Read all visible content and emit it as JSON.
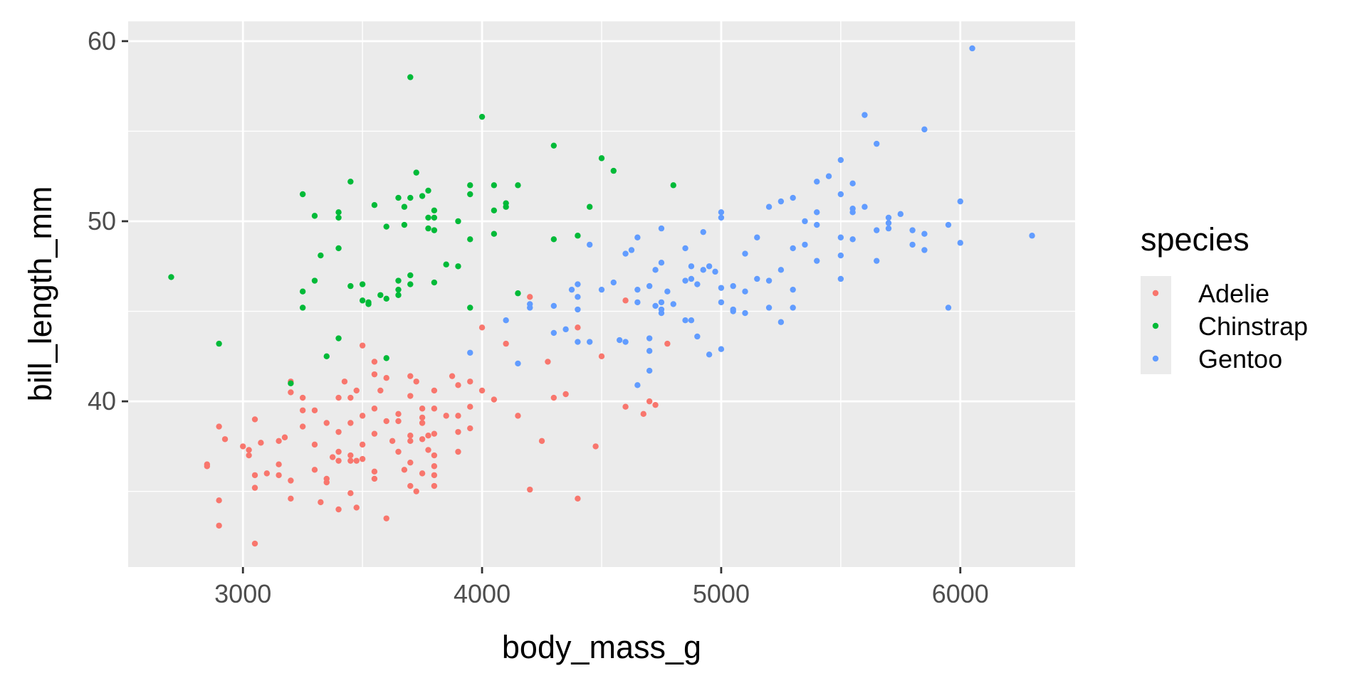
{
  "chart_data": {
    "type": "scatter",
    "xlabel": "body_mass_g",
    "ylabel": "bill_length_mm",
    "xlim": [
      2520,
      6480
    ],
    "ylim": [
      30.8,
      61.1
    ],
    "xticks": [
      3000,
      4000,
      5000,
      6000
    ],
    "yticks": [
      40,
      50,
      60
    ],
    "grid": true,
    "background": "#ebebeb",
    "legend": {
      "title": "species",
      "position": "right"
    },
    "series": [
      {
        "name": "Adelie",
        "color": "#f8766d",
        "points": [
          [
            2850,
            36.5
          ],
          [
            2850,
            36.4
          ],
          [
            2900,
            38.6
          ],
          [
            2900,
            34.5
          ],
          [
            2900,
            33.1
          ],
          [
            2925,
            37.9
          ],
          [
            3000,
            37.5
          ],
          [
            3025,
            37.3
          ],
          [
            3025,
            37.0
          ],
          [
            3050,
            39.0
          ],
          [
            3050,
            35.9
          ],
          [
            3050,
            35.2
          ],
          [
            3050,
            32.1
          ],
          [
            3075,
            37.7
          ],
          [
            3100,
            36.0
          ],
          [
            3150,
            35.9
          ],
          [
            3150,
            37.8
          ],
          [
            3150,
            36.5
          ],
          [
            3175,
            38.0
          ],
          [
            3200,
            35.6
          ],
          [
            3200,
            34.6
          ],
          [
            3200,
            41.1
          ],
          [
            3200,
            40.5
          ],
          [
            3250,
            40.2
          ],
          [
            3250,
            39.5
          ],
          [
            3250,
            38.6
          ],
          [
            3300,
            37.6
          ],
          [
            3300,
            36.2
          ],
          [
            3300,
            39.5
          ],
          [
            3325,
            34.4
          ],
          [
            3350,
            35.5
          ],
          [
            3350,
            35.7
          ],
          [
            3350,
            38.8
          ],
          [
            3375,
            36.9
          ],
          [
            3400,
            34.0
          ],
          [
            3400,
            36.7
          ],
          [
            3400,
            37.2
          ],
          [
            3400,
            38.3
          ],
          [
            3400,
            40.2
          ],
          [
            3425,
            41.1
          ],
          [
            3450,
            34.9
          ],
          [
            3450,
            36.7
          ],
          [
            3450,
            37.0
          ],
          [
            3450,
            38.8
          ],
          [
            3450,
            40.2
          ],
          [
            3475,
            34.1
          ],
          [
            3475,
            36.7
          ],
          [
            3475,
            40.6
          ],
          [
            3500,
            43.1
          ],
          [
            3500,
            36.8
          ],
          [
            3500,
            37.6
          ],
          [
            3500,
            39.2
          ],
          [
            3550,
            42.2
          ],
          [
            3550,
            41.5
          ],
          [
            3550,
            36.1
          ],
          [
            3550,
            35.7
          ],
          [
            3550,
            39.6
          ],
          [
            3550,
            38.2
          ],
          [
            3575,
            40.6
          ],
          [
            3600,
            33.5
          ],
          [
            3600,
            38.9
          ],
          [
            3600,
            41.3
          ],
          [
            3625,
            37.8
          ],
          [
            3650,
            37.2
          ],
          [
            3650,
            39.3
          ],
          [
            3650,
            38.9
          ],
          [
            3675,
            36.2
          ],
          [
            3700,
            35.3
          ],
          [
            3700,
            36.6
          ],
          [
            3700,
            37.8
          ],
          [
            3700,
            38.1
          ],
          [
            3700,
            40.3
          ],
          [
            3700,
            41.4
          ],
          [
            3725,
            41.1
          ],
          [
            3725,
            35.0
          ],
          [
            3750,
            36.0
          ],
          [
            3750,
            37.9
          ],
          [
            3750,
            38.8
          ],
          [
            3750,
            39.1
          ],
          [
            3750,
            39.6
          ],
          [
            3775,
            37.3
          ],
          [
            3775,
            38.1
          ],
          [
            3800,
            35.3
          ],
          [
            3800,
            35.9
          ],
          [
            3800,
            36.4
          ],
          [
            3800,
            37.0
          ],
          [
            3800,
            38.2
          ],
          [
            3800,
            39.6
          ],
          [
            3800,
            40.6
          ],
          [
            3850,
            39.2
          ],
          [
            3875,
            41.4
          ],
          [
            3900,
            37.2
          ],
          [
            3900,
            38.3
          ],
          [
            3900,
            39.2
          ],
          [
            3900,
            40.9
          ],
          [
            3950,
            38.5
          ],
          [
            3950,
            39.7
          ],
          [
            3950,
            41.1
          ],
          [
            4000,
            40.6
          ],
          [
            4000,
            44.1
          ],
          [
            4050,
            40.1
          ],
          [
            4100,
            43.2
          ],
          [
            4150,
            39.2
          ],
          [
            4200,
            45.8
          ],
          [
            4200,
            35.1
          ],
          [
            4250,
            37.8
          ],
          [
            4275,
            42.2
          ],
          [
            4300,
            40.2
          ],
          [
            4350,
            40.4
          ],
          [
            4400,
            34.6
          ],
          [
            4400,
            44.1
          ],
          [
            4475,
            37.5
          ],
          [
            4500,
            42.5
          ],
          [
            4600,
            45.6
          ],
          [
            4600,
            39.7
          ],
          [
            4675,
            39.3
          ],
          [
            4700,
            40.0
          ],
          [
            4725,
            39.8
          ],
          [
            4775,
            43.2
          ]
        ]
      },
      {
        "name": "Chinstrap",
        "color": "#00ba38",
        "points": [
          [
            2700,
            46.9
          ],
          [
            2900,
            43.2
          ],
          [
            3200,
            41.0
          ],
          [
            3250,
            51.5
          ],
          [
            3250,
            46.1
          ],
          [
            3250,
            45.2
          ],
          [
            3300,
            50.3
          ],
          [
            3300,
            46.7
          ],
          [
            3325,
            48.1
          ],
          [
            3350,
            42.5
          ],
          [
            3400,
            50.5
          ],
          [
            3400,
            50.2
          ],
          [
            3400,
            48.5
          ],
          [
            3400,
            43.5
          ],
          [
            3450,
            52.2
          ],
          [
            3450,
            46.4
          ],
          [
            3500,
            46.5
          ],
          [
            3500,
            45.6
          ],
          [
            3525,
            45.4
          ],
          [
            3525,
            45.5
          ],
          [
            3550,
            50.9
          ],
          [
            3575,
            45.9
          ],
          [
            3600,
            49.7
          ],
          [
            3600,
            42.4
          ],
          [
            3600,
            45.7
          ],
          [
            3650,
            51.3
          ],
          [
            3650,
            46.7
          ],
          [
            3650,
            46.2
          ],
          [
            3650,
            45.9
          ],
          [
            3675,
            50.8
          ],
          [
            3675,
            49.8
          ],
          [
            3700,
            58.0
          ],
          [
            3700,
            51.3
          ],
          [
            3700,
            47.0
          ],
          [
            3700,
            46.5
          ],
          [
            3725,
            52.7
          ],
          [
            3750,
            51.4
          ],
          [
            3775,
            51.7
          ],
          [
            3775,
            50.2
          ],
          [
            3775,
            49.6
          ],
          [
            3800,
            50.6
          ],
          [
            3800,
            50.2
          ],
          [
            3800,
            49.5
          ],
          [
            3800,
            46.6
          ],
          [
            3850,
            47.6
          ],
          [
            3900,
            50.0
          ],
          [
            3900,
            47.5
          ],
          [
            3950,
            52.0
          ],
          [
            3950,
            51.5
          ],
          [
            3950,
            49.0
          ],
          [
            3950,
            45.2
          ],
          [
            4000,
            55.8
          ],
          [
            4050,
            52.0
          ],
          [
            4050,
            50.6
          ],
          [
            4050,
            49.3
          ],
          [
            4100,
            51.0
          ],
          [
            4100,
            50.8
          ],
          [
            4150,
            52.0
          ],
          [
            4150,
            46.0
          ],
          [
            4300,
            54.2
          ],
          [
            4300,
            49.0
          ],
          [
            4400,
            49.2
          ],
          [
            4450,
            50.8
          ],
          [
            4500,
            53.5
          ],
          [
            4550,
            52.8
          ],
          [
            4800,
            52.0
          ]
        ]
      },
      {
        "name": "Gentoo",
        "color": "#619cff",
        "points": [
          [
            3950,
            42.7
          ],
          [
            4100,
            44.5
          ],
          [
            4150,
            42.1
          ],
          [
            4200,
            45.4
          ],
          [
            4200,
            45.2
          ],
          [
            4300,
            45.3
          ],
          [
            4300,
            43.8
          ],
          [
            4350,
            44.0
          ],
          [
            4375,
            46.2
          ],
          [
            4400,
            45.8
          ],
          [
            4400,
            46.5
          ],
          [
            4400,
            45.1
          ],
          [
            4400,
            43.3
          ],
          [
            4450,
            48.7
          ],
          [
            4450,
            43.3
          ],
          [
            4500,
            46.2
          ],
          [
            4550,
            46.6
          ],
          [
            4575,
            43.4
          ],
          [
            4600,
            48.2
          ],
          [
            4600,
            43.3
          ],
          [
            4625,
            48.4
          ],
          [
            4650,
            49.1
          ],
          [
            4650,
            45.5
          ],
          [
            4650,
            46.2
          ],
          [
            4650,
            40.9
          ],
          [
            4700,
            46.4
          ],
          [
            4700,
            43.5
          ],
          [
            4700,
            41.7
          ],
          [
            4700,
            42.8
          ],
          [
            4725,
            47.3
          ],
          [
            4725,
            45.3
          ],
          [
            4750,
            49.6
          ],
          [
            4750,
            47.7
          ],
          [
            4750,
            45.1
          ],
          [
            4750,
            45.5
          ],
          [
            4750,
            44.9
          ],
          [
            4775,
            46.1
          ],
          [
            4800,
            45.4
          ],
          [
            4850,
            48.5
          ],
          [
            4850,
            46.7
          ],
          [
            4850,
            44.5
          ],
          [
            4875,
            47.5
          ],
          [
            4875,
            46.8
          ],
          [
            4875,
            44.5
          ],
          [
            4900,
            46.5
          ],
          [
            4900,
            43.6
          ],
          [
            4925,
            49.4
          ],
          [
            4925,
            47.3
          ],
          [
            4950,
            47.5
          ],
          [
            4950,
            42.6
          ],
          [
            4975,
            47.2
          ],
          [
            5000,
            50.5
          ],
          [
            5000,
            50.2
          ],
          [
            5000,
            46.3
          ],
          [
            5000,
            45.5
          ],
          [
            5000,
            42.9
          ],
          [
            5050,
            46.4
          ],
          [
            5050,
            45.1
          ],
          [
            5050,
            45.0
          ],
          [
            5100,
            48.2
          ],
          [
            5100,
            46.1
          ],
          [
            5100,
            44.9
          ],
          [
            5150,
            49.1
          ],
          [
            5150,
            46.8
          ],
          [
            5200,
            50.8
          ],
          [
            5200,
            46.7
          ],
          [
            5200,
            45.2
          ],
          [
            5250,
            51.1
          ],
          [
            5250,
            47.3
          ],
          [
            5250,
            44.4
          ],
          [
            5300,
            51.3
          ],
          [
            5300,
            48.5
          ],
          [
            5300,
            46.2
          ],
          [
            5300,
            45.2
          ],
          [
            5350,
            50.0
          ],
          [
            5350,
            48.7
          ],
          [
            5400,
            52.2
          ],
          [
            5400,
            50.5
          ],
          [
            5400,
            49.8
          ],
          [
            5400,
            47.8
          ],
          [
            5450,
            52.5
          ],
          [
            5500,
            53.4
          ],
          [
            5500,
            51.5
          ],
          [
            5500,
            49.1
          ],
          [
            5500,
            48.1
          ],
          [
            5500,
            46.8
          ],
          [
            5550,
            52.1
          ],
          [
            5550,
            50.7
          ],
          [
            5550,
            50.5
          ],
          [
            5550,
            49.0
          ],
          [
            5600,
            55.9
          ],
          [
            5600,
            50.8
          ],
          [
            5650,
            54.3
          ],
          [
            5650,
            49.5
          ],
          [
            5650,
            47.8
          ],
          [
            5700,
            50.2
          ],
          [
            5700,
            49.9
          ],
          [
            5700,
            49.6
          ],
          [
            5750,
            50.4
          ],
          [
            5800,
            49.5
          ],
          [
            5800,
            48.7
          ],
          [
            5850,
            55.1
          ],
          [
            5850,
            49.3
          ],
          [
            5850,
            48.4
          ],
          [
            5950,
            49.8
          ],
          [
            5950,
            45.2
          ],
          [
            6000,
            51.1
          ],
          [
            6000,
            48.8
          ],
          [
            6050,
            59.6
          ],
          [
            6300,
            49.2
          ]
        ]
      }
    ]
  }
}
